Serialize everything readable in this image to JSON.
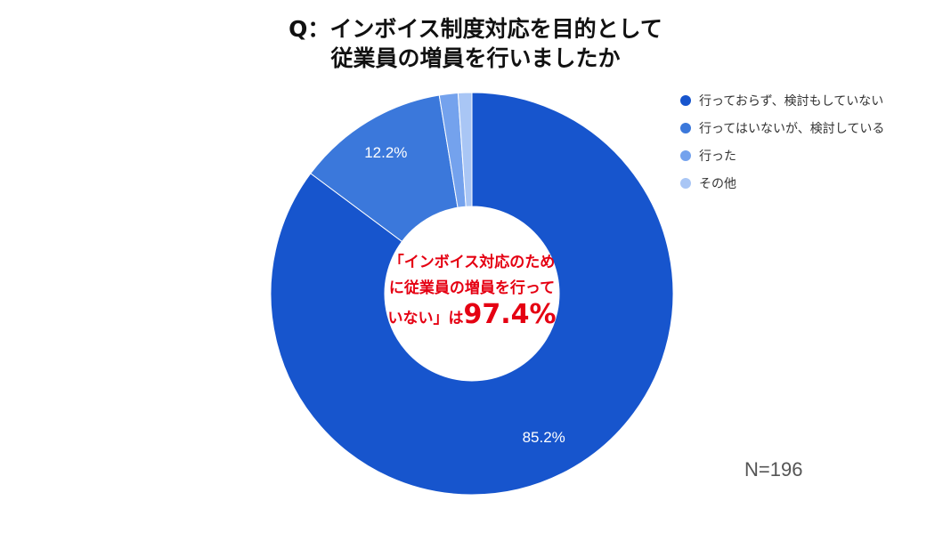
{
  "chart_data": {
    "type": "pie",
    "variant": "donut",
    "title_lines": [
      "Q：インボイス制度対応を目的として",
      "従業員の増員を行いましたか"
    ],
    "categories": [
      "行っておらず、検討もしていない",
      "行ってはいないが、検討している",
      "行った",
      "その他"
    ],
    "values": [
      85.2,
      12.2,
      1.5,
      1.1
    ],
    "colors": [
      "#1755cd",
      "#3b78db",
      "#74a2ed",
      "#a9c6f5"
    ],
    "data_labels": [
      "85.2%",
      "12.2%",
      "",
      ""
    ],
    "legend_position": "right",
    "center_annotation": {
      "line1": "「インボイス対応のため",
      "line2": "に従業員の増員を行って",
      "line3_text": "いない」は",
      "line3_value": "97.4%"
    },
    "sample_size": "N=196"
  }
}
